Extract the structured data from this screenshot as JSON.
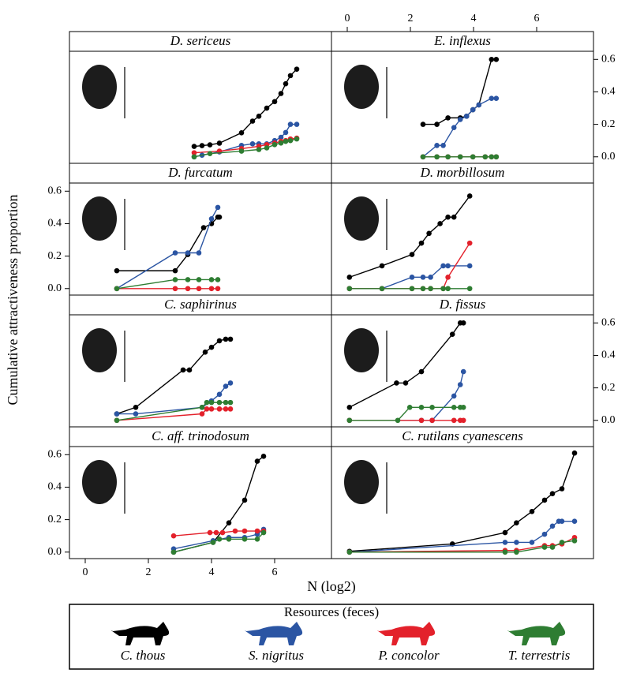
{
  "figure": {
    "xlabel": "N (log2)",
    "ylabel": "Cumulative attractiveness proportion",
    "legend_title": "Resources (feces)"
  },
  "chart_data": [
    {
      "type": "line",
      "title": "D. sericeus",
      "column": "left",
      "xlim": [
        -0.5,
        7.8
      ],
      "ylim": [
        -0.04,
        0.65
      ],
      "series": [
        {
          "name": "C. thous",
          "color": "#000000",
          "x": [
            3.45,
            3.7,
            3.95,
            4.25,
            4.95,
            5.3,
            5.5,
            5.75,
            6.0,
            6.2,
            6.35,
            6.5,
            6.7
          ],
          "values": [
            0.064,
            0.069,
            0.074,
            0.084,
            0.148,
            0.22,
            0.25,
            0.3,
            0.34,
            0.39,
            0.45,
            0.5,
            0.54
          ]
        },
        {
          "name": "S. nigritus",
          "color": "#2b55a3",
          "x": [
            3.45,
            3.7,
            4.25,
            4.95,
            5.3,
            5.5,
            5.75,
            6.0,
            6.2,
            6.35,
            6.5,
            6.7
          ],
          "values": [
            0.0,
            0.01,
            0.03,
            0.07,
            0.08,
            0.08,
            0.08,
            0.1,
            0.12,
            0.15,
            0.2,
            0.2
          ]
        },
        {
          "name": "P. concolor",
          "color": "#e3212b",
          "x": [
            3.45,
            4.25,
            4.95,
            5.5,
            5.75,
            6.0,
            6.2,
            6.35,
            6.5,
            6.7
          ],
          "values": [
            0.025,
            0.035,
            0.05,
            0.065,
            0.075,
            0.085,
            0.095,
            0.1,
            0.11,
            0.115
          ]
        },
        {
          "name": "T. terrestris",
          "color": "#2e7d32",
          "x": [
            3.45,
            3.95,
            4.95,
            5.5,
            5.75,
            6.0,
            6.2,
            6.35,
            6.5,
            6.7
          ],
          "values": [
            0.0,
            0.02,
            0.035,
            0.045,
            0.055,
            0.075,
            0.085,
            0.095,
            0.1,
            0.11
          ]
        }
      ]
    },
    {
      "type": "line",
      "title": "E. inflexus",
      "column": "right",
      "xlim": [
        -0.5,
        7.8
      ],
      "ylim": [
        -0.04,
        0.65
      ],
      "xaxis": "top",
      "xticks": [
        0,
        2,
        4,
        6
      ],
      "yaxis": "right",
      "yticks": [
        {
          "value": 0,
          "label": "0.0"
        },
        {
          "value": 0.2,
          "label": "0.2"
        },
        {
          "value": 0.4,
          "label": "0.4"
        },
        {
          "value": 0.6,
          "label": "0.6"
        }
      ],
      "series": [
        {
          "name": "C. thous",
          "color": "#000000",
          "x": [
            2.4,
            2.84,
            3.19,
            3.58,
            3.78,
            3.98,
            4.17,
            4.57,
            4.72
          ],
          "values": [
            0.2,
            0.2,
            0.24,
            0.24,
            0.25,
            0.29,
            0.32,
            0.6,
            0.6
          ]
        },
        {
          "name": "S. nigritus",
          "color": "#2b55a3",
          "x": [
            2.4,
            2.84,
            3.04,
            3.38,
            3.58,
            3.78,
            3.98,
            4.17,
            4.57,
            4.72
          ],
          "values": [
            0,
            0.07,
            0.07,
            0.18,
            0.23,
            0.25,
            0.29,
            0.32,
            0.36,
            0.36
          ]
        },
        {
          "name": "P. concolor",
          "color": "#e3212b",
          "x": [
            2.4,
            2.84,
            3.19,
            3.58,
            3.98,
            4.37,
            4.57,
            4.72
          ],
          "values": [
            0,
            0,
            0,
            0,
            0,
            0,
            0,
            0
          ]
        },
        {
          "name": "T. terrestris",
          "color": "#2e7d32",
          "x": [
            2.4,
            2.84,
            3.19,
            3.58,
            3.98,
            4.37,
            4.57,
            4.72
          ],
          "values": [
            0,
            0,
            0,
            0,
            0,
            0,
            0,
            0
          ]
        }
      ]
    },
    {
      "type": "line",
      "title": "D. furcatum",
      "column": "left",
      "xlim": [
        -0.5,
        7.8
      ],
      "ylim": [
        -0.04,
        0.65
      ],
      "yaxis": "left",
      "yticks": [
        {
          "value": 0,
          "label": "0.0"
        },
        {
          "value": 0.2,
          "label": "0.2"
        },
        {
          "value": 0.4,
          "label": "0.4"
        },
        {
          "value": 0.6,
          "label": "0.6"
        }
      ],
      "series": [
        {
          "name": "C. thous",
          "color": "#000000",
          "x": [
            1.0,
            2.85,
            3.25,
            3.75,
            4.0,
            4.2,
            4.25
          ],
          "values": [
            0.11,
            0.11,
            0.21,
            0.375,
            0.4,
            0.44,
            0.44
          ]
        },
        {
          "name": "S. nigritus",
          "color": "#2b55a3",
          "x": [
            1.0,
            2.85,
            3.25,
            3.6,
            4.0,
            4.2
          ],
          "values": [
            0,
            0.22,
            0.22,
            0.22,
            0.43,
            0.5
          ]
        },
        {
          "name": "P. concolor",
          "color": "#e3212b",
          "x": [
            1.0,
            2.85,
            3.25,
            3.6,
            4.0,
            4.2
          ],
          "values": [
            0,
            0,
            0,
            0,
            0,
            0
          ]
        },
        {
          "name": "T. terrestris",
          "color": "#2e7d32",
          "x": [
            1.0,
            2.85,
            3.25,
            3.6,
            4.0,
            4.2
          ],
          "values": [
            0,
            0.055,
            0.055,
            0.055,
            0.055,
            0.055
          ]
        }
      ]
    },
    {
      "type": "line",
      "title": "D. morbillosum",
      "column": "right",
      "xlim": [
        -0.5,
        7.8
      ],
      "ylim": [
        -0.04,
        0.65
      ],
      "series": [
        {
          "name": "C. thous",
          "color": "#000000",
          "x": [
            0.07,
            1.1,
            2.05,
            2.35,
            2.59,
            2.94,
            3.19,
            3.38,
            3.88
          ],
          "values": [
            0.07,
            0.14,
            0.21,
            0.28,
            0.34,
            0.4,
            0.44,
            0.44,
            0.57
          ]
        },
        {
          "name": "S. nigritus",
          "color": "#2b55a3",
          "x": [
            0.07,
            1.1,
            2.05,
            2.4,
            2.64,
            3.04,
            3.19,
            3.88
          ],
          "values": [
            0,
            0,
            0.07,
            0.07,
            0.07,
            0.14,
            0.14,
            0.14
          ]
        },
        {
          "name": "P. concolor",
          "color": "#e3212b",
          "x": [
            0.07,
            1.1,
            2.05,
            2.4,
            2.64,
            3.04,
            3.19,
            3.88
          ],
          "values": [
            0,
            0,
            0,
            0,
            0,
            0,
            0.07,
            0.28
          ]
        },
        {
          "name": "T. terrestris",
          "color": "#2e7d32",
          "x": [
            0.07,
            1.1,
            2.05,
            2.4,
            2.64,
            3.04,
            3.19,
            3.88
          ],
          "values": [
            0,
            0,
            0,
            0,
            0,
            0,
            0,
            0
          ]
        }
      ]
    },
    {
      "type": "line",
      "title": "C. saphirinus",
      "column": "left",
      "xlim": [
        -0.5,
        7.8
      ],
      "ylim": [
        -0.04,
        0.65
      ],
      "series": [
        {
          "name": "C. thous",
          "color": "#000000",
          "x": [
            1.0,
            1.6,
            3.1,
            3.3,
            3.8,
            4.0,
            4.25,
            4.45,
            4.6
          ],
          "values": [
            0.04,
            0.08,
            0.31,
            0.31,
            0.42,
            0.45,
            0.49,
            0.5,
            0.5
          ]
        },
        {
          "name": "S. nigritus",
          "color": "#2b55a3",
          "x": [
            1.0,
            1.6,
            3.7,
            4.0,
            4.25,
            4.45,
            4.6
          ],
          "values": [
            0.04,
            0.04,
            0.08,
            0.12,
            0.16,
            0.21,
            0.23
          ]
        },
        {
          "name": "P. concolor",
          "color": "#e3212b",
          "x": [
            1.0,
            3.7,
            3.85,
            4.0,
            4.25,
            4.45,
            4.6
          ],
          "values": [
            0,
            0.04,
            0.07,
            0.07,
            0.07,
            0.07,
            0.07
          ]
        },
        {
          "name": "T. terrestris",
          "color": "#2e7d32",
          "x": [
            1.0,
            3.7,
            3.85,
            4.0,
            4.25,
            4.45,
            4.6
          ],
          "values": [
            0,
            0.08,
            0.11,
            0.11,
            0.11,
            0.11,
            0.11
          ]
        }
      ]
    },
    {
      "type": "line",
      "title": "D. fissus",
      "column": "right",
      "xlim": [
        -0.5,
        7.8
      ],
      "ylim": [
        -0.04,
        0.65
      ],
      "yaxis": "right",
      "yticks": [
        {
          "value": 0,
          "label": "0.0"
        },
        {
          "value": 0.2,
          "label": "0.2"
        },
        {
          "value": 0.4,
          "label": "0.4"
        },
        {
          "value": 0.6,
          "label": "0.6"
        }
      ],
      "series": [
        {
          "name": "C. thous",
          "color": "#000000",
          "x": [
            0.07,
            1.56,
            1.85,
            2.35,
            3.33,
            3.58,
            3.68
          ],
          "values": [
            0.08,
            0.23,
            0.23,
            0.3,
            0.53,
            0.6,
            0.6
          ]
        },
        {
          "name": "S. nigritus",
          "color": "#2b55a3",
          "x": [
            0.07,
            2.35,
            2.69,
            3.38,
            3.58,
            3.68
          ],
          "values": [
            0,
            0,
            0,
            0.15,
            0.22,
            0.3
          ]
        },
        {
          "name": "P. concolor",
          "color": "#e3212b",
          "x": [
            0.07,
            2.35,
            2.69,
            3.38,
            3.58,
            3.68
          ],
          "values": [
            0,
            0,
            0,
            0,
            0,
            0
          ]
        },
        {
          "name": "T. terrestris",
          "color": "#2e7d32",
          "x": [
            0.07,
            1.6,
            1.98,
            2.35,
            2.69,
            3.38,
            3.58,
            3.68
          ],
          "values": [
            0,
            0,
            0.08,
            0.08,
            0.08,
            0.08,
            0.08,
            0.08
          ]
        }
      ]
    },
    {
      "type": "line",
      "title": "C. aff. trinodosum",
      "column": "left",
      "xlim": [
        -0.5,
        7.8
      ],
      "ylim": [
        -0.04,
        0.65
      ],
      "xaxis": "bottom",
      "xticks": [
        0,
        2,
        4,
        6
      ],
      "yaxis": "left",
      "yticks": [
        {
          "value": 0,
          "label": "0.0"
        },
        {
          "value": 0.2,
          "label": "0.2"
        },
        {
          "value": 0.4,
          "label": "0.4"
        },
        {
          "value": 0.6,
          "label": "0.6"
        }
      ],
      "series": [
        {
          "name": "C. thous",
          "color": "#000000",
          "x": [
            2.8,
            4.05,
            4.55,
            5.05,
            5.45,
            5.65
          ],
          "values": [
            0,
            0.06,
            0.18,
            0.32,
            0.56,
            0.59
          ]
        },
        {
          "name": "S. nigritus",
          "color": "#2b55a3",
          "x": [
            2.8,
            4.05,
            4.55,
            5.05,
            5.45,
            5.65
          ],
          "values": [
            0.02,
            0.07,
            0.09,
            0.09,
            0.11,
            0.14
          ]
        },
        {
          "name": "P. concolor",
          "color": "#e3212b",
          "x": [
            2.8,
            3.95,
            4.15,
            4.35,
            4.75,
            5.05,
            5.45,
            5.65
          ],
          "values": [
            0.1,
            0.12,
            0.12,
            0.12,
            0.13,
            0.13,
            0.13,
            0.13
          ]
        },
        {
          "name": "T. terrestris",
          "color": "#2e7d32",
          "x": [
            2.8,
            4.05,
            4.25,
            4.55,
            5.05,
            5.45,
            5.65
          ],
          "values": [
            0,
            0.06,
            0.08,
            0.08,
            0.08,
            0.08,
            0.12
          ]
        }
      ]
    },
    {
      "type": "line",
      "title": "C. rutilans cyanescens",
      "column": "right",
      "xlim": [
        -0.5,
        7.8
      ],
      "ylim": [
        -0.04,
        0.65
      ],
      "series": [
        {
          "name": "C. thous",
          "color": "#000000",
          "x": [
            0.07,
            3.33,
            5.0,
            5.36,
            5.85,
            6.25,
            6.5,
            6.8,
            7.2
          ],
          "values": [
            0.005,
            0.05,
            0.12,
            0.18,
            0.25,
            0.32,
            0.36,
            0.39,
            0.61
          ]
        },
        {
          "name": "S. nigritus",
          "color": "#2b55a3",
          "x": [
            0.07,
            5.0,
            5.36,
            5.85,
            6.25,
            6.5,
            6.7,
            6.8,
            7.2
          ],
          "values": [
            0,
            0.06,
            0.06,
            0.06,
            0.11,
            0.16,
            0.19,
            0.19,
            0.19
          ]
        },
        {
          "name": "P. concolor",
          "color": "#e3212b",
          "x": [
            0.07,
            5.0,
            5.36,
            6.25,
            6.5,
            6.8,
            7.2
          ],
          "values": [
            0,
            0.01,
            0.01,
            0.04,
            0.04,
            0.05,
            0.09
          ]
        },
        {
          "name": "T. terrestris",
          "color": "#2e7d32",
          "x": [
            0.07,
            5.0,
            5.36,
            6.25,
            6.5,
            6.8,
            7.2
          ],
          "values": [
            0,
            0,
            0,
            0.03,
            0.03,
            0.06,
            0.07
          ]
        }
      ]
    }
  ]
}
